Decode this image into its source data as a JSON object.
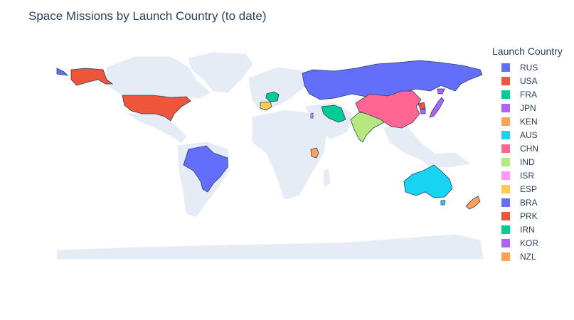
{
  "title": "Space Missions by Launch Country (to date)",
  "legend": {
    "title": "Launch Country",
    "items": [
      {
        "label": "RUS",
        "color": "#636efa"
      },
      {
        "label": "USA",
        "color": "#EF553B"
      },
      {
        "label": "FRA",
        "color": "#00cc96"
      },
      {
        "label": "JPN",
        "color": "#ab63fa"
      },
      {
        "label": "KEN",
        "color": "#FFA15A"
      },
      {
        "label": "AUS",
        "color": "#19d3f3"
      },
      {
        "label": "CHN",
        "color": "#FF6692"
      },
      {
        "label": "IND",
        "color": "#B6E880"
      },
      {
        "label": "ISR",
        "color": "#FF97FF"
      },
      {
        "label": "ESP",
        "color": "#FECB52"
      },
      {
        "label": "BRA",
        "color": "#636efa"
      },
      {
        "label": "PRK",
        "color": "#EF553B"
      },
      {
        "label": "IRN",
        "color": "#00cc96"
      },
      {
        "label": "KOR",
        "color": "#ab63fa"
      },
      {
        "label": "NZL",
        "color": "#FFA15A"
      }
    ]
  },
  "colors": {
    "land": "#e5ecf6",
    "ocean": "#ffffff",
    "border": "#2a3f5f"
  }
}
